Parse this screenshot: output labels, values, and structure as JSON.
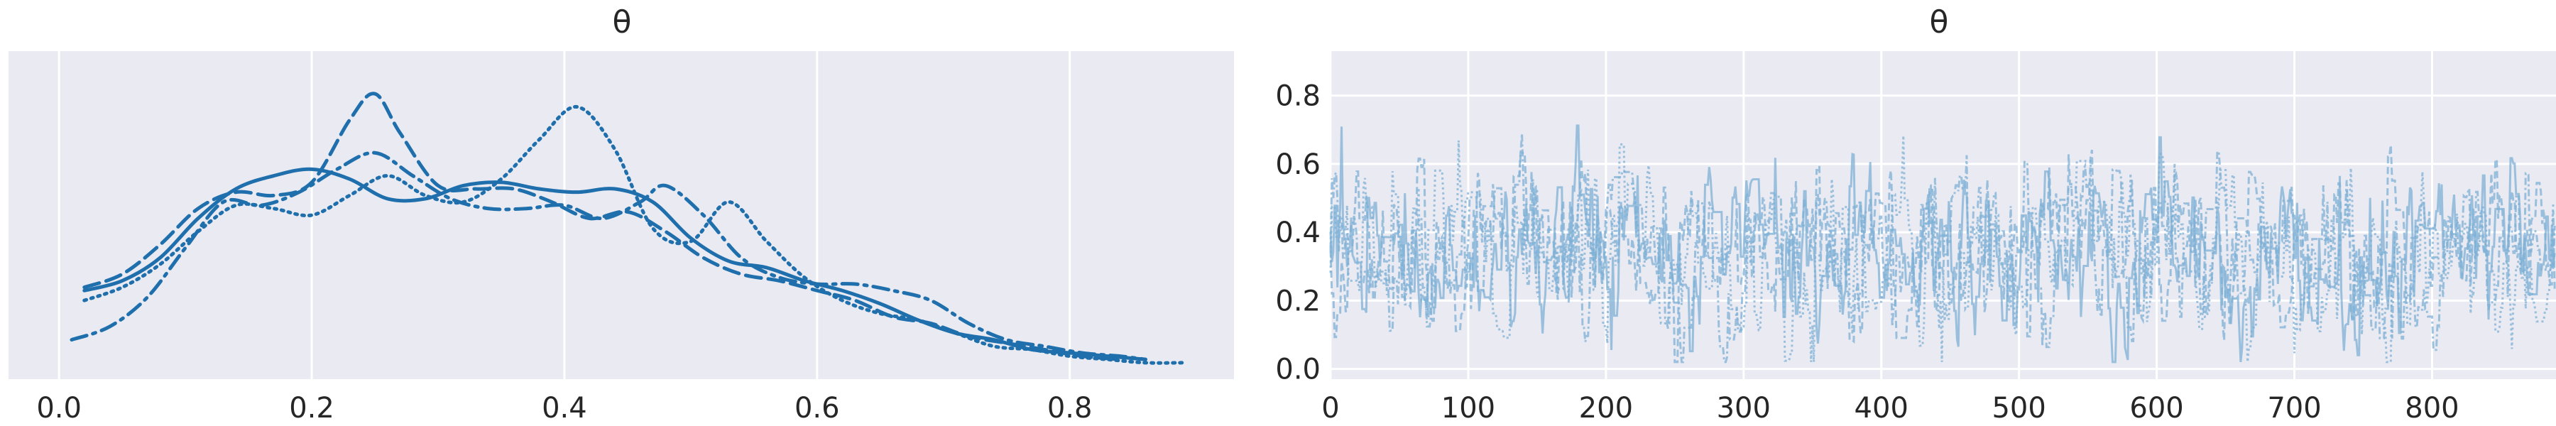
{
  "chart_data": [
    {
      "type": "line",
      "title": "θ",
      "xlabel": "",
      "ylabel": "",
      "xlim": [
        -0.04,
        0.93
      ],
      "ylim": [
        0,
        1
      ],
      "x_ticks": [
        "0.0",
        "0.2",
        "0.4",
        "0.6",
        "0.8"
      ],
      "y_ticks": [],
      "grid": true,
      "series": [
        {
          "style": "solid",
          "points": [
            [
              0.02,
              0.27
            ],
            [
              0.05,
              0.3
            ],
            [
              0.08,
              0.37
            ],
            [
              0.11,
              0.49
            ],
            [
              0.14,
              0.58
            ],
            [
              0.17,
              0.62
            ],
            [
              0.2,
              0.64
            ],
            [
              0.23,
              0.61
            ],
            [
              0.26,
              0.55
            ],
            [
              0.29,
              0.55
            ],
            [
              0.32,
              0.59
            ],
            [
              0.35,
              0.6
            ],
            [
              0.38,
              0.58
            ],
            [
              0.41,
              0.57
            ],
            [
              0.44,
              0.58
            ],
            [
              0.47,
              0.54
            ],
            [
              0.5,
              0.43
            ],
            [
              0.53,
              0.36
            ],
            [
              0.56,
              0.34
            ],
            [
              0.59,
              0.3
            ],
            [
              0.62,
              0.27
            ],
            [
              0.65,
              0.23
            ],
            [
              0.68,
              0.18
            ],
            [
              0.71,
              0.14
            ],
            [
              0.74,
              0.12
            ],
            [
              0.77,
              0.09
            ],
            [
              0.8,
              0.08
            ],
            [
              0.83,
              0.07
            ],
            [
              0.86,
              0.06
            ]
          ]
        },
        {
          "style": "dashed",
          "points": [
            [
              0.02,
              0.28
            ],
            [
              0.05,
              0.32
            ],
            [
              0.08,
              0.41
            ],
            [
              0.11,
              0.52
            ],
            [
              0.14,
              0.57
            ],
            [
              0.17,
              0.56
            ],
            [
              0.2,
              0.6
            ],
            [
              0.23,
              0.79
            ],
            [
              0.25,
              0.87
            ],
            [
              0.27,
              0.75
            ],
            [
              0.3,
              0.59
            ],
            [
              0.33,
              0.58
            ],
            [
              0.36,
              0.58
            ],
            [
              0.39,
              0.54
            ],
            [
              0.42,
              0.49
            ],
            [
              0.45,
              0.51
            ],
            [
              0.48,
              0.45
            ],
            [
              0.51,
              0.37
            ],
            [
              0.54,
              0.32
            ],
            [
              0.57,
              0.3
            ],
            [
              0.6,
              0.27
            ],
            [
              0.63,
              0.24
            ],
            [
              0.66,
              0.19
            ],
            [
              0.69,
              0.17
            ],
            [
              0.72,
              0.13
            ],
            [
              0.75,
              0.11
            ],
            [
              0.78,
              0.09
            ],
            [
              0.81,
              0.07
            ],
            [
              0.84,
              0.06
            ]
          ]
        },
        {
          "style": "dashdot",
          "points": [
            [
              0.01,
              0.12
            ],
            [
              0.04,
              0.16
            ],
            [
              0.07,
              0.25
            ],
            [
              0.1,
              0.4
            ],
            [
              0.13,
              0.54
            ],
            [
              0.16,
              0.53
            ],
            [
              0.19,
              0.57
            ],
            [
              0.22,
              0.64
            ],
            [
              0.25,
              0.69
            ],
            [
              0.28,
              0.62
            ],
            [
              0.31,
              0.55
            ],
            [
              0.34,
              0.52
            ],
            [
              0.37,
              0.52
            ],
            [
              0.4,
              0.53
            ],
            [
              0.43,
              0.49
            ],
            [
              0.46,
              0.54
            ],
            [
              0.48,
              0.59
            ],
            [
              0.51,
              0.5
            ],
            [
              0.54,
              0.37
            ],
            [
              0.57,
              0.31
            ],
            [
              0.6,
              0.29
            ],
            [
              0.63,
              0.29
            ],
            [
              0.66,
              0.27
            ],
            [
              0.69,
              0.24
            ],
            [
              0.72,
              0.17
            ],
            [
              0.75,
              0.12
            ],
            [
              0.78,
              0.1
            ],
            [
              0.81,
              0.08
            ],
            [
              0.84,
              0.07
            ],
            [
              0.86,
              0.06
            ]
          ]
        },
        {
          "style": "dotted",
          "points": [
            [
              0.02,
              0.24
            ],
            [
              0.05,
              0.28
            ],
            [
              0.08,
              0.35
            ],
            [
              0.11,
              0.45
            ],
            [
              0.14,
              0.53
            ],
            [
              0.17,
              0.52
            ],
            [
              0.2,
              0.5
            ],
            [
              0.23,
              0.56
            ],
            [
              0.26,
              0.62
            ],
            [
              0.29,
              0.56
            ],
            [
              0.32,
              0.54
            ],
            [
              0.35,
              0.61
            ],
            [
              0.38,
              0.73
            ],
            [
              0.41,
              0.83
            ],
            [
              0.44,
              0.7
            ],
            [
              0.47,
              0.46
            ],
            [
              0.5,
              0.42
            ],
            [
              0.53,
              0.54
            ],
            [
              0.56,
              0.42
            ],
            [
              0.59,
              0.31
            ],
            [
              0.62,
              0.24
            ],
            [
              0.65,
              0.2
            ],
            [
              0.68,
              0.18
            ],
            [
              0.71,
              0.14
            ],
            [
              0.74,
              0.1
            ],
            [
              0.77,
              0.09
            ],
            [
              0.8,
              0.07
            ],
            [
              0.83,
              0.06
            ],
            [
              0.86,
              0.05
            ],
            [
              0.89,
              0.05
            ]
          ]
        }
      ]
    },
    {
      "type": "line",
      "title": "θ",
      "xlabel": "",
      "ylabel": "",
      "xlim": [
        0,
        890
      ],
      "ylim": [
        -0.03,
        0.93
      ],
      "x_ticks": [
        "0",
        "100",
        "200",
        "300",
        "400",
        "500",
        "600",
        "700",
        "800"
      ],
      "y_ticks": [
        "0.0",
        "0.2",
        "0.4",
        "0.6",
        "0.8"
      ],
      "grid": true,
      "n_draws": 890,
      "series_styles": [
        "solid",
        "dashed",
        "dashdot",
        "dotted"
      ],
      "value_range": [
        0.02,
        0.89
      ],
      "center": 0.35
    }
  ],
  "colors": {
    "line": "#1f6fad",
    "trace": "#7eb0d5",
    "plot_bg": "#eaeaf2",
    "grid": "#ffffff",
    "text": "#262626"
  }
}
